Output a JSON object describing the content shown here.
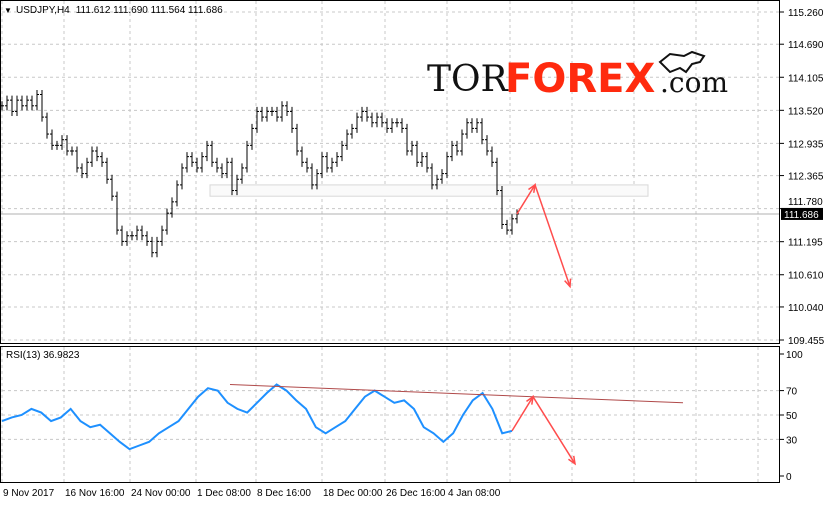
{
  "header": {
    "symbol": "USDJPY,H4",
    "ohlc": "111.612 111.690 111.564 111.686"
  },
  "rsi_label": "RSI(13) 36.9823",
  "current_price": "111.686",
  "logo": {
    "tor": "TOR",
    "forex": "FOREX",
    "com": ".com"
  },
  "colors": {
    "candles": "#000000",
    "rsi": "#1e90ff",
    "arrows": "#ff4d4d",
    "trendline": "#b04a4a",
    "grid": "#c8c8c8",
    "brand": "#ff2a0e"
  },
  "chart_data": [
    {
      "type": "bar",
      "title": "USDJPY,H4",
      "ylim": [
        109.455,
        115.26
      ],
      "price_ticks": [
        "115.260",
        "114.690",
        "114.105",
        "113.520",
        "112.935",
        "112.365",
        "111.780",
        "111.195",
        "110.610",
        "110.040",
        "109.455"
      ],
      "time_ticks": [
        "9 Nov 2017",
        "16 Nov 16:00",
        "24 Nov 00:00",
        "1 Dec 08:00",
        "8 Dec 16:00",
        "18 Dec 00:00",
        "26 Dec 16:00",
        "4 Jan 08:00"
      ],
      "close": [
        113.6,
        113.7,
        113.5,
        113.7,
        113.6,
        113.7,
        113.6,
        113.8,
        113.4,
        113.1,
        112.9,
        112.9,
        113.0,
        112.8,
        112.8,
        112.5,
        112.4,
        112.6,
        112.8,
        112.7,
        112.6,
        112.3,
        112.0,
        111.4,
        111.2,
        111.3,
        111.3,
        111.4,
        111.3,
        111.2,
        111.0,
        111.2,
        111.4,
        111.7,
        111.9,
        112.2,
        112.5,
        112.7,
        112.6,
        112.5,
        112.7,
        112.9,
        112.6,
        112.5,
        112.4,
        112.6,
        112.1,
        112.3,
        112.5,
        112.9,
        113.2,
        113.5,
        113.4,
        113.5,
        113.5,
        113.4,
        113.6,
        113.5,
        113.2,
        112.8,
        112.6,
        112.5,
        112.2,
        112.4,
        112.7,
        112.5,
        112.6,
        112.7,
        112.9,
        113.1,
        113.2,
        113.4,
        113.5,
        113.4,
        113.3,
        113.4,
        113.3,
        113.2,
        113.3,
        113.3,
        113.2,
        112.8,
        112.9,
        112.6,
        112.7,
        112.5,
        112.2,
        112.3,
        112.4,
        112.7,
        112.9,
        112.8,
        113.1,
        113.3,
        113.2,
        113.3,
        113.0,
        112.8,
        112.6,
        112.1,
        111.5,
        111.4,
        111.6,
        111.686
      ],
      "zone": [
        112.0,
        112.2
      ],
      "forecast": [
        112.2,
        110.4
      ]
    },
    {
      "type": "line",
      "title": "RSI(13) 36.9823",
      "ylim": [
        0,
        100
      ],
      "ticks": [
        "100",
        "70",
        "50",
        "30",
        "0"
      ],
      "values": [
        45,
        48,
        50,
        55,
        52,
        45,
        48,
        55,
        45,
        40,
        42,
        35,
        28,
        22,
        25,
        28,
        35,
        40,
        45,
        55,
        65,
        72,
        70,
        60,
        55,
        52,
        60,
        68,
        75,
        70,
        62,
        55,
        40,
        35,
        40,
        45,
        55,
        65,
        70,
        65,
        60,
        62,
        55,
        40,
        35,
        28,
        35,
        50,
        62,
        68,
        55,
        35,
        37
      ],
      "trendline": [
        75,
        60
      ],
      "forecast": [
        65,
        10
      ]
    }
  ]
}
